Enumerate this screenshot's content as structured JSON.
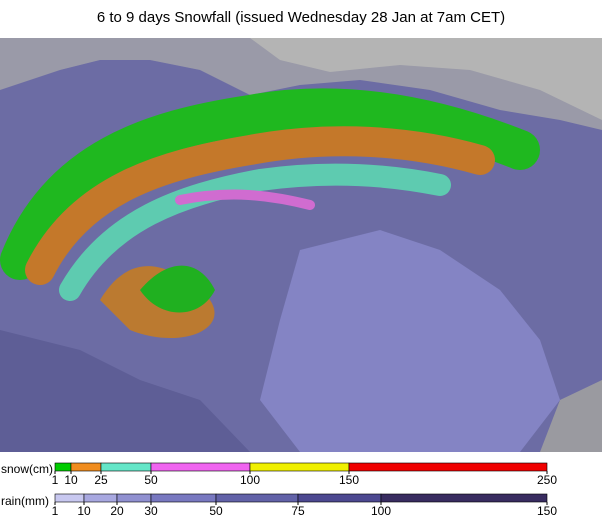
{
  "title": "6 to 9 days Snowfall (issued Wednesday 28 Jan at 7am CET)",
  "legends": [
    {
      "label": "snow(cm)",
      "ticks": [
        1,
        10,
        25,
        50,
        100,
        150,
        250
      ],
      "colors": [
        "#00cc00",
        "#f08c1e",
        "#64e6c8",
        "#f064f0",
        "#f0f000",
        "#f00000"
      ]
    },
    {
      "label": "rain(mm)",
      "ticks": [
        1,
        10,
        20,
        30,
        50,
        75,
        100,
        150
      ],
      "colors": [
        "#c8c8f0",
        "#a8a8e0",
        "#9090d0",
        "#7878c0",
        "#6262a8",
        "#4c4890",
        "#382c60"
      ]
    }
  ]
}
